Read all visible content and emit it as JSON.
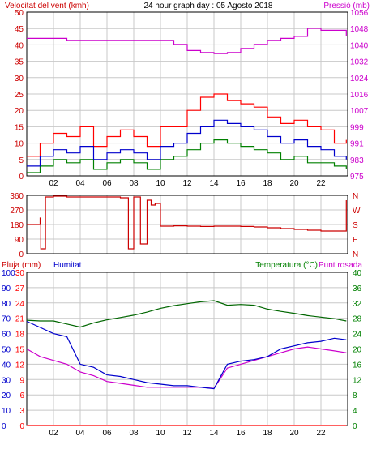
{
  "colors": {
    "background": "#ffffff",
    "grid": "#c8c8c8",
    "frame": "#000000",
    "wind_gust": "#ff0000",
    "wind_avg": "#0000cc",
    "wind_low": "#008000",
    "pressure": "#cc00cc",
    "direction": "#cc0000",
    "rain": "#ff0000",
    "humidity": "#0000cc",
    "temperature": "#006600",
    "dewpoint": "#cc00cc",
    "left_label": "#cc0000",
    "humidity_label": "#0000cc",
    "temperature_label": "#008000",
    "dewpoint_label": "#cc00cc"
  },
  "x_ticks": [
    "02",
    "04",
    "06",
    "08",
    "10",
    "12",
    "14",
    "16",
    "18",
    "20",
    "22"
  ],
  "chart_data": [
    {
      "type": "line",
      "title": "24 hour graph day : 05 Agosto 2018",
      "ylabel_left": "Velocitat del vent (kmh)",
      "ylabel_right": "Pressió (mb)",
      "ylim_left": [
        0,
        50
      ],
      "ylim_right": [
        975,
        1056
      ],
      "yticks_left": [
        "0",
        "5",
        "10",
        "15",
        "20",
        "25",
        "30",
        "35",
        "40",
        "45",
        "50"
      ],
      "yticks_right": [
        "975",
        "983",
        "991",
        "999",
        "1007",
        "1016",
        "1024",
        "1032",
        "1040",
        "1048",
        "1056"
      ],
      "grid": true,
      "x_hours": [
        0,
        1,
        2,
        3,
        4,
        5,
        6,
        7,
        8,
        9,
        10,
        11,
        12,
        13,
        14,
        15,
        16,
        17,
        18,
        19,
        20,
        21,
        22,
        23,
        23.9
      ],
      "series": [
        {
          "key": "gust",
          "axis": "left",
          "values": [
            6,
            10,
            13,
            12,
            15,
            9,
            12,
            14,
            12,
            9,
            15,
            15,
            20,
            24,
            25,
            23,
            22,
            21,
            18,
            16,
            17,
            15,
            14,
            10,
            11
          ]
        },
        {
          "key": "avg",
          "axis": "left",
          "values": [
            3,
            6,
            8,
            7,
            9,
            5,
            7,
            8,
            7,
            5,
            9,
            10,
            13,
            15,
            17,
            16,
            15,
            14,
            12,
            10,
            11,
            9,
            8,
            6,
            5
          ]
        },
        {
          "key": "low",
          "axis": "left",
          "values": [
            1,
            3,
            5,
            4,
            5,
            2,
            4,
            5,
            4,
            2,
            5,
            6,
            8,
            10,
            11,
            10,
            9,
            8,
            7,
            5,
            6,
            4,
            4,
            3,
            2
          ]
        },
        {
          "key": "pressure",
          "axis": "right",
          "values": [
            1043,
            1043,
            1043,
            1042,
            1042,
            1042,
            1042,
            1042,
            1042,
            1042,
            1042,
            1040,
            1037,
            1036,
            1035.5,
            1036,
            1038,
            1040,
            1042,
            1043,
            1044,
            1048,
            1047,
            1047,
            1044
          ]
        }
      ]
    },
    {
      "type": "line",
      "ylabel_left": "",
      "ylim": [
        0,
        360
      ],
      "yticks_left": [
        "0",
        "90",
        "180",
        "270",
        "360"
      ],
      "yticks_right": [
        "N",
        "E",
        "S",
        "W",
        "N"
      ],
      "grid": true,
      "series": [
        {
          "key": "direction",
          "x_hours": [
            0,
            0.5,
            1,
            1.05,
            1.4,
            2,
            3,
            4,
            5,
            6,
            7,
            7.6,
            8,
            8.5,
            9,
            9.3,
            9.6,
            10,
            11,
            12,
            13,
            14,
            15,
            16,
            17,
            18,
            19,
            20,
            21,
            22,
            23,
            23.9
          ],
          "values": [
            180,
            180,
            220,
            30,
            350,
            355,
            350,
            350,
            350,
            350,
            345,
            30,
            350,
            60,
            330,
            300,
            310,
            170,
            172,
            170,
            168,
            170,
            170,
            168,
            165,
            160,
            155,
            150,
            145,
            140,
            140,
            330
          ]
        }
      ]
    },
    {
      "type": "line",
      "ylabel_rain": "Pluja (mm)",
      "ylabel_humidity": "Humitat",
      "ylabel_right": "Temperatura (°C)",
      "ylabel_right2": "Punt rosada",
      "ylim_temperature": [
        0,
        40
      ],
      "ylim_humidity": [
        0,
        100
      ],
      "ylim_rain": [
        0,
        30
      ],
      "yticks_humidity": [
        "0",
        "10",
        "20",
        "30",
        "40",
        "50",
        "60",
        "70",
        "80",
        "90",
        "100"
      ],
      "yticks_rain": [
        "0",
        "3",
        "6",
        "9",
        "12",
        "15",
        "18",
        "21",
        "24",
        "27",
        "30"
      ],
      "yticks_temperature": [
        "0",
        "4",
        "8",
        "12",
        "16",
        "20",
        "24",
        "28",
        "32",
        "36",
        "40"
      ],
      "grid": true,
      "x_hours": [
        0,
        1,
        2,
        3,
        4,
        5,
        6,
        7,
        8,
        9,
        10,
        11,
        12,
        13,
        14,
        15,
        16,
        17,
        18,
        19,
        20,
        21,
        22,
        23,
        23.9
      ],
      "series": [
        {
          "key": "temperature",
          "axis": "temperature",
          "values": [
            27.5,
            27.3,
            27.3,
            26.5,
            25.7,
            26.8,
            27.6,
            28.2,
            28.8,
            29.6,
            30.6,
            31.3,
            31.8,
            32.3,
            32.6,
            31.4,
            31.6,
            31.4,
            30.4,
            29.8,
            29.3,
            28.7,
            28.3,
            27.9,
            27.3
          ]
        },
        {
          "key": "humidity",
          "axis": "humidity",
          "values": [
            68,
            64,
            60,
            58,
            40,
            38,
            33,
            32,
            30,
            28,
            27,
            26,
            26,
            25,
            24,
            40,
            42,
            43,
            45,
            50,
            52,
            54,
            55,
            57,
            56
          ]
        },
        {
          "key": "dewpoint",
          "axis": "temperature",
          "values": [
            20,
            18,
            17,
            16,
            14,
            13,
            11.5,
            11,
            10.5,
            10,
            10,
            10,
            10,
            10,
            9.7,
            15,
            16,
            17,
            18,
            19,
            20,
            20.5,
            20,
            19.5,
            19
          ]
        },
        {
          "key": "rain",
          "axis": "rain",
          "values": [
            0,
            0,
            0,
            0,
            0,
            0,
            0,
            0,
            0,
            0,
            0,
            0,
            0,
            0,
            0,
            0,
            0,
            0,
            0,
            0,
            0,
            0,
            0,
            0,
            0
          ]
        }
      ]
    }
  ]
}
